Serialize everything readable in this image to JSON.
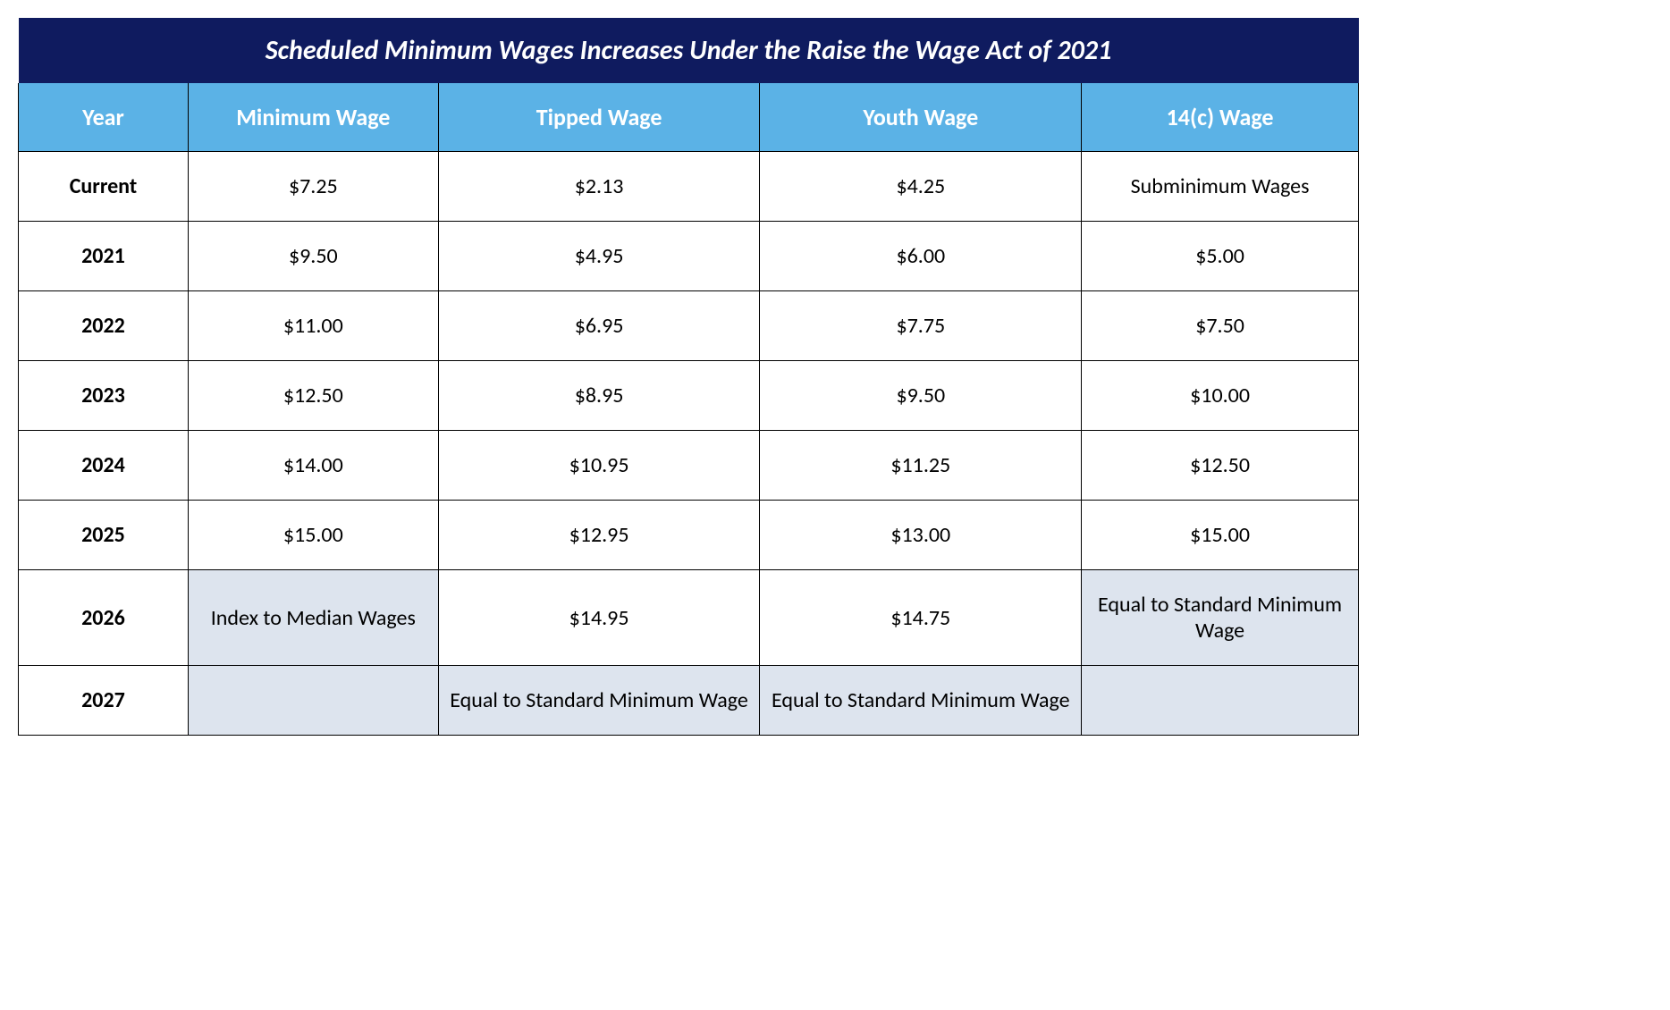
{
  "table": {
    "title": "Scheduled Minimum Wages Increases Under the Raise the Wage Act of 2021",
    "columns": [
      "Year",
      "Minimum Wage",
      "Tipped Wage",
      "Youth Wage",
      "14(c) Wage"
    ],
    "rows": [
      {
        "year": "Current",
        "min": "$7.25",
        "tipped": "$2.13",
        "youth": "$4.25",
        "c14": "Subminimum Wages",
        "shaded": []
      },
      {
        "year": "2021",
        "min": "$9.50",
        "tipped": "$4.95",
        "youth": "$6.00",
        "c14": "$5.00",
        "shaded": []
      },
      {
        "year": "2022",
        "min": "$11.00",
        "tipped": "$6.95",
        "youth": "$7.75",
        "c14": "$7.50",
        "shaded": []
      },
      {
        "year": "2023",
        "min": "$12.50",
        "tipped": "$8.95",
        "youth": "$9.50",
        "c14": "$10.00",
        "shaded": []
      },
      {
        "year": "2024",
        "min": "$14.00",
        "tipped": "$10.95",
        "youth": "$11.25",
        "c14": "$12.50",
        "shaded": []
      },
      {
        "year": "2025",
        "min": "$15.00",
        "tipped": "$12.95",
        "youth": "$13.00",
        "c14": "$15.00",
        "shaded": []
      },
      {
        "year": "2026",
        "min": "Index to Median Wages",
        "tipped": "$14.95",
        "youth": "$14.75",
        "c14": "Equal to Standard Minimum Wage",
        "shaded": [
          "min",
          "c14"
        ]
      },
      {
        "year": "2027",
        "min": "",
        "tipped": "Equal to Standard Minimum Wage",
        "youth": "Equal to Standard Minimum Wage",
        "c14": "",
        "shaded": [
          "min",
          "tipped",
          "youth",
          "c14"
        ]
      }
    ],
    "colors": {
      "title_bg": "#0f1b5f",
      "header_bg": "#5bb2e6",
      "shaded_bg": "#dde4ee",
      "border": "#000000",
      "text_light": "#ffffff",
      "text_dark": "#000000"
    },
    "font_sizes": {
      "title": 30,
      "header": 26,
      "body": 24
    }
  }
}
